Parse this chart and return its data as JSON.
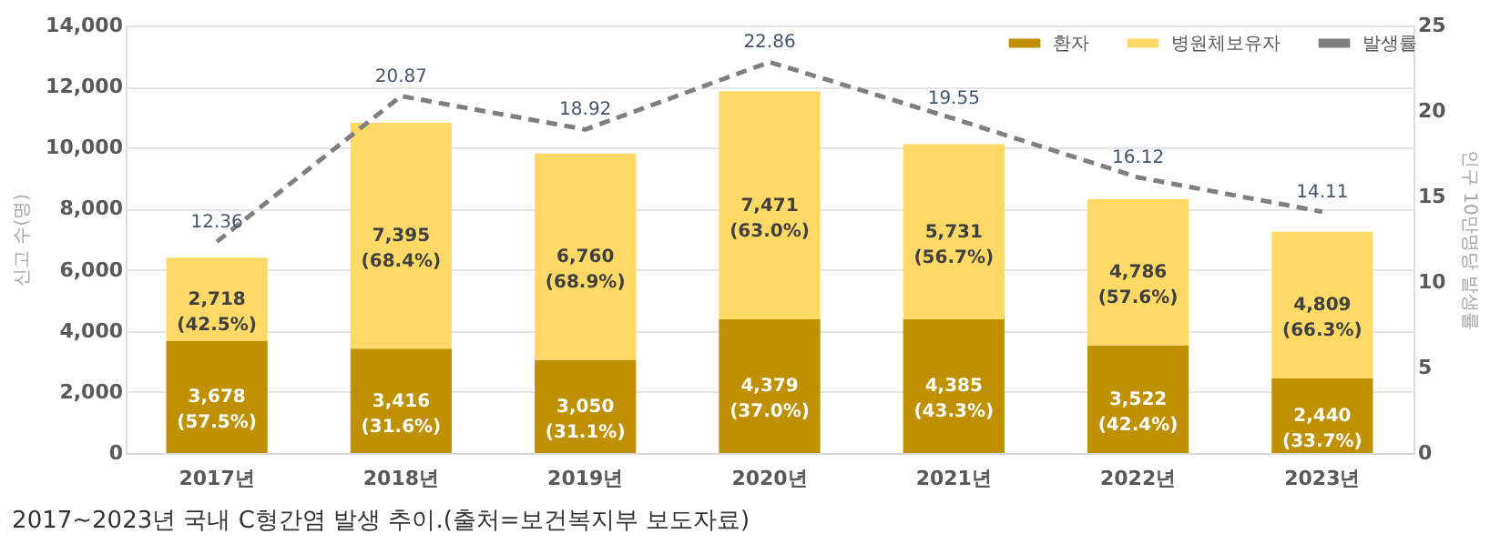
{
  "chart_data": {
    "type": "bar",
    "stacked": true,
    "categories": [
      "2017년",
      "2018년",
      "2019년",
      "2020년",
      "2021년",
      "2022년",
      "2023년"
    ],
    "ylabel": "신고 수(명)",
    "y2label": "인구 10만명당 발생률",
    "ylim": [
      0,
      14000
    ],
    "yticks": [
      {
        "value": 0,
        "label": "0"
      },
      {
        "value": 2000,
        "label": "2,000"
      },
      {
        "value": 4000,
        "label": "4,000"
      },
      {
        "value": 6000,
        "label": "6,000"
      },
      {
        "value": 8000,
        "label": "8,000"
      },
      {
        "value": 10000,
        "label": "10,000"
      },
      {
        "value": 12000,
        "label": "12,000"
      },
      {
        "value": 14000,
        "label": "14,000"
      }
    ],
    "y2lim": [
      0,
      25
    ],
    "y2ticks": [
      0,
      5,
      10,
      15,
      20,
      25
    ],
    "grid": "y",
    "legend": "top right",
    "series": [
      {
        "name": "환자",
        "color": "#bf9000",
        "values": [
          3678,
          3416,
          3050,
          4379,
          4385,
          3522,
          2440
        ],
        "value_labels": [
          "3,678\n(57.5%)",
          "3,416\n(31.6%)",
          "3,050\n(31.1%)",
          "4,379\n(37.0%)",
          "4,385\n(43.3%)",
          "3,522\n(42.4%)",
          "2,440\n(33.7%)"
        ]
      },
      {
        "name": "병원체보유자",
        "color": "#ffd966",
        "values": [
          2718,
          7395,
          6760,
          7471,
          5731,
          4786,
          4809
        ],
        "value_labels": [
          "2,718\n(42.5%)",
          "7,395\n(68.4%)",
          "6,760\n(68.9%)",
          "7,471\n(63.0%)",
          "5,731\n(56.7%)",
          "4,786\n(57.6%)",
          "4,809\n(66.3%)"
        ]
      },
      {
        "name": "발생률",
        "type": "line",
        "axis": "y2",
        "color": "#7f7f7f",
        "line_style": "dashed",
        "marker": "none",
        "values": [
          12.36,
          20.87,
          18.92,
          22.86,
          19.55,
          16.12,
          14.11
        ],
        "value_labels": [
          "12.36",
          "20.87",
          "18.92",
          "22.86",
          "19.55",
          "16.12",
          "14.11"
        ]
      }
    ],
    "annotations": [
      "2017~2023년 국내 C형간염 발생 추이.(출처=보건복지부 보도자료)"
    ]
  }
}
